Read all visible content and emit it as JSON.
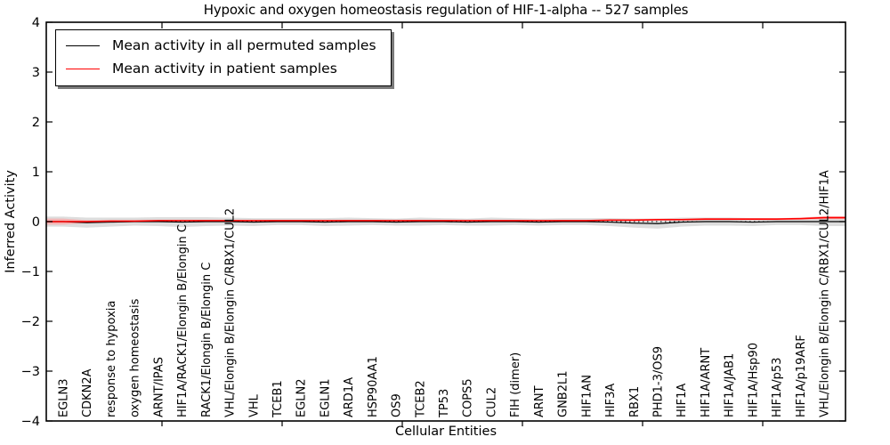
{
  "chart_data": {
    "type": "line",
    "title": "Hypoxic and oxygen homeostasis regulation of HIF-1-alpha -- 527 samples",
    "xlabel": "Cellular Entities",
    "ylabel": "Inferred Activity",
    "ylim": [
      -4,
      4
    ],
    "ytick_values": [
      4,
      3,
      2,
      1,
      0,
      -1,
      -2,
      -3,
      -4
    ],
    "ytick_labels": [
      "4",
      "3",
      "2",
      "1",
      "0",
      "−1",
      "−2",
      "−3",
      "−4"
    ],
    "grid": false,
    "zero_line_style": "dotted",
    "legend_position": "upper left",
    "legend": [
      "Mean activity in all permuted samples",
      "Mean activity in patient samples"
    ],
    "categories": [
      "EGLN3",
      "CDKN2A",
      "response to hypoxia",
      "oxygen homeostasis",
      "ARNT/IPAS",
      "HIF1A/RACK1/Elongin B/Elongin C",
      "RACK1/Elongin B/Elongin C",
      "VHL/Elongin B/Elongin C/RBX1/CUL2",
      "VHL",
      "TCEB1",
      "EGLN2",
      "EGLN1",
      "ARD1A",
      "HSP90AA1",
      "OS9",
      "TCEB2",
      "TP53",
      "COPS5",
      "CUL2",
      "FIH (dimer)",
      "ARNT",
      "GNB2L1",
      "HIF1AN",
      "HIF3A",
      "RBX1",
      "PHD1-3/OS9",
      "HIF1A",
      "HIF1A/ARNT",
      "HIF1A/JAB1",
      "HIF1A/Hsp90",
      "HIF1A/p53",
      "HIF1A/p19ARF",
      "VHL/Elongin B/Elongin C/RBX1/CUL2/HIF1A"
    ],
    "series": [
      {
        "name": "Mean activity in all permuted samples",
        "color": "#000000",
        "band_color": "#d9d9d9",
        "values": [
          0.0,
          -0.02,
          -0.01,
          0.0,
          0.0,
          -0.01,
          0.0,
          0.0,
          -0.01,
          0.0,
          0.0,
          -0.01,
          0.0,
          0.0,
          -0.01,
          0.0,
          0.0,
          -0.01,
          0.0,
          0.0,
          -0.01,
          0.0,
          0.0,
          -0.01,
          -0.03,
          -0.04,
          -0.01,
          0.0,
          0.0,
          -0.01,
          0.0,
          0.0,
          0.0
        ],
        "band_halfwidth": [
          0.1,
          0.1,
          0.09,
          0.08,
          0.09,
          0.1,
          0.09,
          0.08,
          0.08,
          0.07,
          0.07,
          0.08,
          0.08,
          0.07,
          0.07,
          0.08,
          0.07,
          0.07,
          0.08,
          0.07,
          0.07,
          0.07,
          0.07,
          0.08,
          0.09,
          0.1,
          0.09,
          0.08,
          0.08,
          0.08,
          0.07,
          0.07,
          0.09
        ]
      },
      {
        "name": "Mean activity in patient samples",
        "color": "#ff0000",
        "band_color": "#ff9e9e",
        "values": [
          0.0,
          0.0,
          0.01,
          0.01,
          0.02,
          0.02,
          0.02,
          0.02,
          0.02,
          0.02,
          0.02,
          0.02,
          0.02,
          0.02,
          0.02,
          0.02,
          0.02,
          0.02,
          0.02,
          0.02,
          0.02,
          0.02,
          0.02,
          0.03,
          0.03,
          0.04,
          0.04,
          0.05,
          0.05,
          0.05,
          0.05,
          0.06,
          0.08
        ],
        "band_halfwidth": [
          0.06,
          0.03,
          0.02,
          0.01,
          0.01,
          0.01,
          0.01,
          0.01,
          0.01,
          0.01,
          0.01,
          0.01,
          0.01,
          0.01,
          0.01,
          0.01,
          0.01,
          0.01,
          0.01,
          0.01,
          0.01,
          0.01,
          0.01,
          0.01,
          0.02,
          0.02,
          0.02,
          0.02,
          0.02,
          0.02,
          0.02,
          0.02,
          0.03
        ]
      }
    ]
  },
  "colors": {
    "axis": "#000000",
    "permuted_line": "#000000",
    "patient_line": "#ff0000",
    "permuted_band": "#d9d9d9",
    "patient_band": "#ff9e9e",
    "background": "#ffffff"
  }
}
